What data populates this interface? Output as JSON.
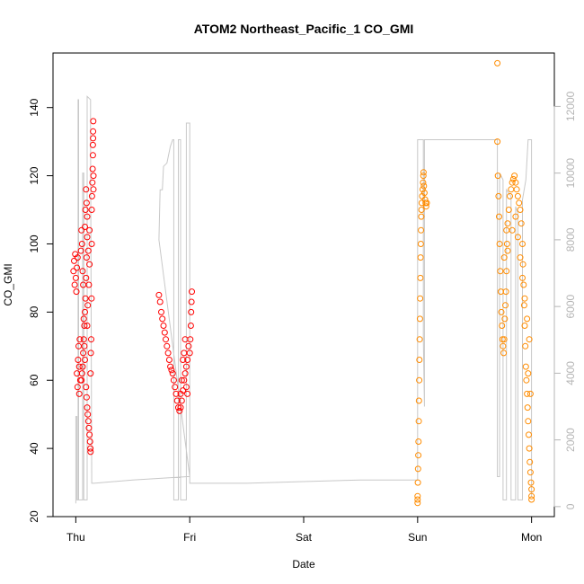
{
  "chart_data": {
    "type": "scatter",
    "title": "ATOM2 Northeast_Pacific_1 CO_GMI",
    "xlabel": "Date",
    "ylabel": "CO_GMI",
    "x_ticks": [
      "Thu",
      "Fri",
      "Sat",
      "Sun",
      "Mon"
    ],
    "x_range_days": [
      -0.2,
      4.2
    ],
    "ylim": [
      20,
      156
    ],
    "y_ticks": [
      20,
      40,
      60,
      80,
      100,
      120,
      140
    ],
    "y2_ticks": [
      0,
      2000,
      4000,
      6000,
      8000,
      10000,
      12000
    ],
    "y2lim": [
      -300,
      13600
    ],
    "y2_tick_color": "#b5b5b5",
    "colors": {
      "series_1": "#ff0000",
      "series_2": "#ff8c00",
      "altitude": "#c8c8c8"
    },
    "grid": false,
    "series": [
      {
        "color": "#ff0000",
        "marker": "open-circle",
        "points": [
          [
            -0.02,
            92
          ],
          [
            -0.015,
            95
          ],
          [
            -0.01,
            88
          ],
          [
            -0.005,
            97
          ],
          [
            0.0,
            90
          ],
          [
            0.005,
            86
          ],
          [
            0.01,
            93
          ],
          [
            0.015,
            96
          ],
          [
            0.01,
            62
          ],
          [
            0.015,
            58
          ],
          [
            0.02,
            66
          ],
          [
            0.025,
            70
          ],
          [
            0.03,
            64
          ],
          [
            0.03,
            56
          ],
          [
            0.035,
            72
          ],
          [
            0.04,
            60
          ],
          [
            0.045,
            98
          ],
          [
            0.05,
            104
          ],
          [
            0.055,
            100
          ],
          [
            0.06,
            92
          ],
          [
            0.065,
            88
          ],
          [
            0.07,
            78
          ],
          [
            0.075,
            70
          ],
          [
            0.08,
            66
          ],
          [
            0.08,
            105
          ],
          [
            0.085,
            110
          ],
          [
            0.09,
            116
          ],
          [
            0.095,
            112
          ],
          [
            0.1,
            108
          ],
          [
            0.1,
            102
          ],
          [
            0.095,
            96
          ],
          [
            0.09,
            90
          ],
          [
            0.085,
            84
          ],
          [
            0.08,
            80
          ],
          [
            0.075,
            76
          ],
          [
            0.07,
            72
          ],
          [
            0.065,
            68
          ],
          [
            0.06,
            64
          ],
          [
            0.055,
            62
          ],
          [
            0.05,
            60
          ],
          [
            0.09,
            58
          ],
          [
            0.095,
            55
          ],
          [
            0.1,
            52
          ],
          [
            0.105,
            50
          ],
          [
            0.11,
            48
          ],
          [
            0.115,
            46
          ],
          [
            0.12,
            44
          ],
          [
            0.125,
            42
          ],
          [
            0.128,
            40
          ],
          [
            0.13,
            39
          ],
          [
            0.13,
            62
          ],
          [
            0.132,
            68
          ],
          [
            0.135,
            72
          ],
          [
            0.138,
            84
          ],
          [
            0.14,
            100
          ],
          [
            0.14,
            110
          ],
          [
            0.142,
            114
          ],
          [
            0.145,
            118
          ],
          [
            0.148,
            122
          ],
          [
            0.15,
            126
          ],
          [
            0.15,
            129
          ],
          [
            0.152,
            131
          ],
          [
            0.152,
            133
          ],
          [
            0.153,
            136
          ],
          [
            0.155,
            120
          ],
          [
            0.155,
            116
          ],
          [
            0.12,
            104
          ],
          [
            0.11,
            98
          ],
          [
            0.12,
            94
          ],
          [
            0.115,
            88
          ],
          [
            0.105,
            82
          ],
          [
            0.1,
            76
          ],
          [
            0.73,
            85
          ],
          [
            0.74,
            83
          ],
          [
            0.75,
            80
          ],
          [
            0.76,
            78
          ],
          [
            0.77,
            76
          ],
          [
            0.78,
            74
          ],
          [
            0.79,
            72
          ],
          [
            0.8,
            70
          ],
          [
            0.81,
            68
          ],
          [
            0.82,
            66
          ],
          [
            0.83,
            64
          ],
          [
            0.84,
            63
          ],
          [
            0.85,
            62
          ],
          [
            0.86,
            60
          ],
          [
            0.87,
            58
          ],
          [
            0.88,
            56
          ],
          [
            0.89,
            54
          ],
          [
            0.9,
            52
          ],
          [
            0.91,
            51
          ],
          [
            0.92,
            52
          ],
          [
            0.93,
            54
          ],
          [
            0.94,
            57
          ],
          [
            0.95,
            60
          ],
          [
            0.96,
            62
          ],
          [
            0.97,
            64
          ],
          [
            0.98,
            66
          ],
          [
            0.99,
            70
          ],
          [
            1.0,
            68
          ],
          [
            1.005,
            72
          ],
          [
            1.01,
            76
          ],
          [
            1.012,
            80
          ],
          [
            1.015,
            83
          ],
          [
            1.018,
            86
          ],
          [
            0.95,
            68
          ],
          [
            0.96,
            72
          ],
          [
            0.94,
            66
          ],
          [
            0.93,
            60
          ],
          [
            0.92,
            56
          ],
          [
            0.97,
            58
          ],
          [
            0.98,
            56
          ]
        ]
      },
      {
        "color": "#ff8c00",
        "marker": "open-circle",
        "points": [
          [
            3.0,
            24
          ],
          [
            3.0,
            25
          ],
          [
            3.0,
            26
          ],
          [
            3.002,
            30
          ],
          [
            3.004,
            34
          ],
          [
            3.006,
            38
          ],
          [
            3.008,
            42
          ],
          [
            3.01,
            48
          ],
          [
            3.012,
            54
          ],
          [
            3.014,
            60
          ],
          [
            3.016,
            66
          ],
          [
            3.018,
            72
          ],
          [
            3.02,
            78
          ],
          [
            3.022,
            84
          ],
          [
            3.024,
            90
          ],
          [
            3.026,
            96
          ],
          [
            3.028,
            100
          ],
          [
            3.03,
            104
          ],
          [
            3.032,
            108
          ],
          [
            3.034,
            110
          ],
          [
            3.036,
            112
          ],
          [
            3.04,
            114
          ],
          [
            3.044,
            116
          ],
          [
            3.048,
            118
          ],
          [
            3.05,
            120
          ],
          [
            3.052,
            121
          ],
          [
            3.055,
            117
          ],
          [
            3.06,
            115
          ],
          [
            3.065,
            113
          ],
          [
            3.07,
            112
          ],
          [
            3.075,
            111
          ],
          [
            3.08,
            112
          ],
          [
            3.7,
            153
          ],
          [
            3.7,
            130
          ],
          [
            3.705,
            120
          ],
          [
            3.71,
            114
          ],
          [
            3.715,
            108
          ],
          [
            3.72,
            100
          ],
          [
            3.725,
            92
          ],
          [
            3.73,
            86
          ],
          [
            3.735,
            80
          ],
          [
            3.74,
            76
          ],
          [
            3.745,
            72
          ],
          [
            3.75,
            70
          ],
          [
            3.755,
            68
          ],
          [
            3.76,
            72
          ],
          [
            3.765,
            78
          ],
          [
            3.77,
            82
          ],
          [
            3.775,
            86
          ],
          [
            3.78,
            92
          ],
          [
            3.785,
            100
          ],
          [
            3.79,
            106
          ],
          [
            3.8,
            110
          ],
          [
            3.81,
            114
          ],
          [
            3.82,
            116
          ],
          [
            3.83,
            118
          ],
          [
            3.84,
            119
          ],
          [
            3.85,
            120
          ],
          [
            3.86,
            118
          ],
          [
            3.87,
            116
          ],
          [
            3.88,
            114
          ],
          [
            3.89,
            112
          ],
          [
            3.9,
            110
          ],
          [
            3.91,
            106
          ],
          [
            3.92,
            100
          ],
          [
            3.925,
            94
          ],
          [
            3.93,
            88
          ],
          [
            3.935,
            82
          ],
          [
            3.94,
            76
          ],
          [
            3.945,
            70
          ],
          [
            3.95,
            64
          ],
          [
            3.955,
            60
          ],
          [
            3.96,
            56
          ],
          [
            3.965,
            52
          ],
          [
            3.97,
            48
          ],
          [
            3.975,
            44
          ],
          [
            3.98,
            40
          ],
          [
            3.985,
            36
          ],
          [
            3.99,
            33
          ],
          [
            3.995,
            30
          ],
          [
            4.0,
            28
          ],
          [
            4.0,
            26
          ],
          [
            4.0,
            25
          ],
          [
            3.78,
            104
          ],
          [
            3.76,
            96
          ],
          [
            3.79,
            98
          ],
          [
            3.83,
            104
          ],
          [
            3.86,
            108
          ],
          [
            3.88,
            102
          ],
          [
            3.9,
            96
          ],
          [
            3.92,
            90
          ],
          [
            3.94,
            84
          ],
          [
            3.96,
            78
          ],
          [
            3.98,
            72
          ],
          [
            3.97,
            62
          ],
          [
            3.99,
            56
          ]
        ]
      },
      {
        "color": "#c8c8c8",
        "line": true,
        "axis": "right",
        "points": [
          [
            0.0,
            100
          ],
          [
            0.0,
            2700
          ],
          [
            0.01,
            2700
          ],
          [
            0.01,
            200
          ],
          [
            0.02,
            200
          ],
          [
            0.02,
            12200
          ],
          [
            0.025,
            12200
          ],
          [
            0.025,
            200
          ],
          [
            0.06,
            200
          ],
          [
            0.06,
            10000
          ],
          [
            0.07,
            10000
          ],
          [
            0.07,
            200
          ],
          [
            0.1,
            200
          ],
          [
            0.1,
            12300
          ],
          [
            0.13,
            12200
          ],
          [
            0.13,
            11000
          ],
          [
            0.14,
            700
          ],
          [
            0.16,
            700
          ],
          [
            0.5,
            800
          ],
          [
            0.98,
            900
          ],
          [
            1.0,
            900
          ],
          [
            0.73,
            8000
          ],
          [
            0.74,
            9500
          ],
          [
            0.76,
            9500
          ],
          [
            0.77,
            10200
          ],
          [
            0.8,
            10300
          ],
          [
            0.83,
            10800
          ],
          [
            0.85,
            11000
          ],
          [
            0.86,
            11000
          ],
          [
            0.86,
            200
          ],
          [
            0.9,
            200
          ],
          [
            0.9,
            11000
          ],
          [
            0.92,
            11000
          ],
          [
            0.92,
            200
          ],
          [
            0.97,
            200
          ],
          [
            0.97,
            11500
          ],
          [
            1.0,
            11500
          ],
          [
            1.0,
            700
          ],
          [
            1.5,
            700
          ],
          [
            2.0,
            750
          ],
          [
            2.5,
            800
          ],
          [
            3.0,
            800
          ],
          [
            3.0,
            11000
          ],
          [
            3.01,
            11000
          ],
          [
            3.05,
            11000
          ],
          [
            3.05,
            5000
          ],
          [
            3.06,
            3000
          ],
          [
            3.06,
            11000
          ],
          [
            3.5,
            11000
          ],
          [
            3.7,
            11000
          ],
          [
            3.7,
            900
          ],
          [
            3.72,
            900
          ],
          [
            3.72,
            10000
          ],
          [
            3.75,
            9800
          ],
          [
            3.75,
            200
          ],
          [
            3.78,
            200
          ],
          [
            3.78,
            9500
          ],
          [
            3.82,
            9300
          ],
          [
            3.82,
            200
          ],
          [
            3.86,
            200
          ],
          [
            3.86,
            9000
          ],
          [
            3.88,
            8800
          ],
          [
            3.88,
            200
          ],
          [
            3.92,
            200
          ],
          [
            3.92,
            9200
          ],
          [
            3.95,
            9800
          ],
          [
            3.97,
            11000
          ],
          [
            4.0,
            11000
          ],
          [
            4.0,
            300
          ]
        ]
      }
    ]
  }
}
